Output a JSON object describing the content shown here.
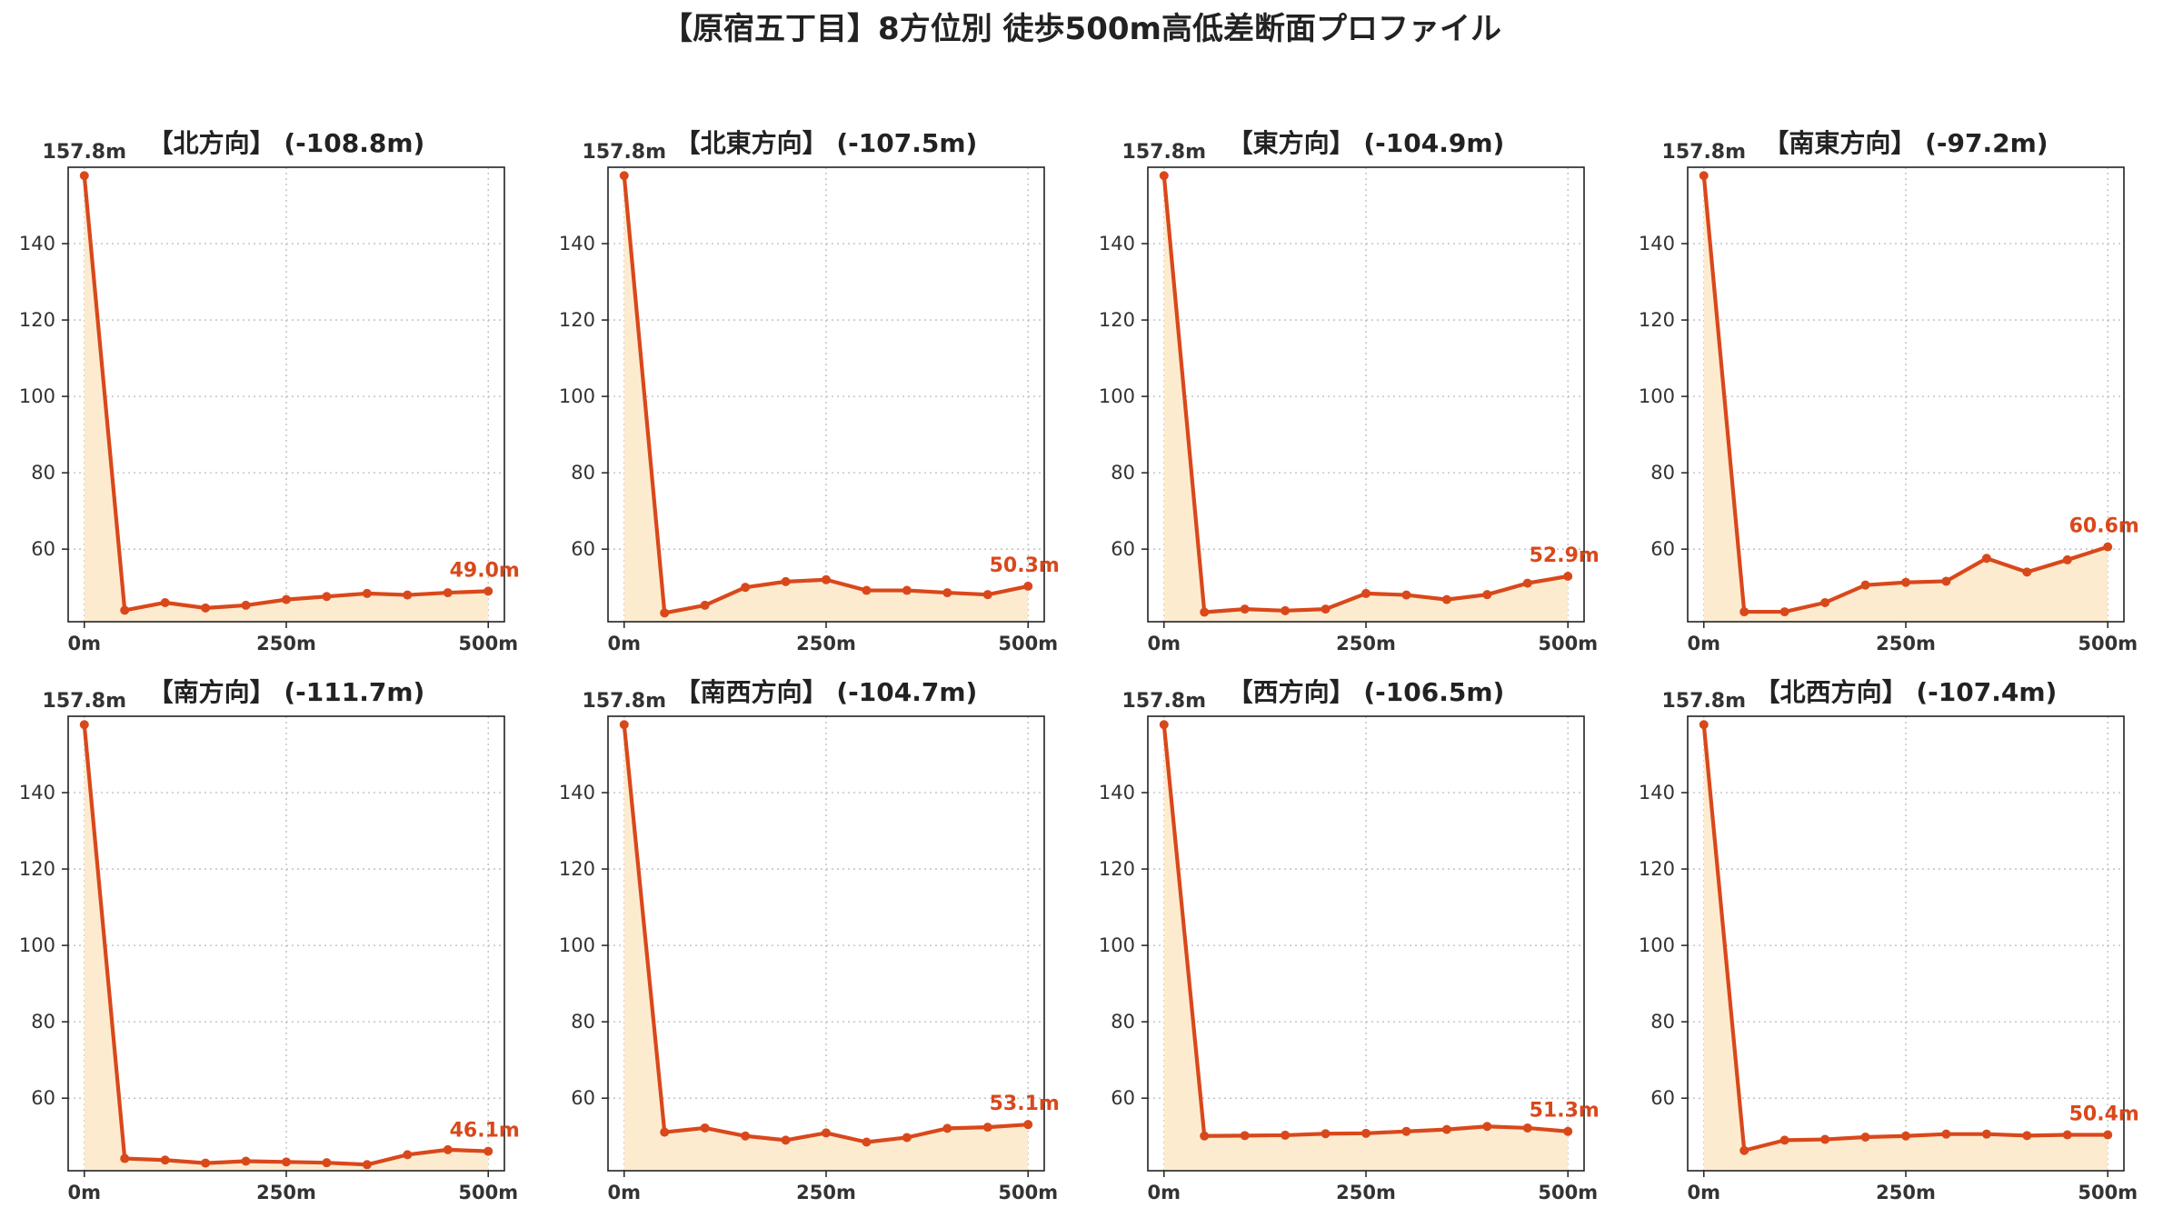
{
  "suptitle": "【原宿五丁目】8方位別 徒歩500m高低差断面プロファイル",
  "colors": {
    "line": "#d9481b",
    "fill": "#fdebd0",
    "grid": "#bbbbbb",
    "axis": "#222222",
    "text": "#222222",
    "tick_text": "#333333",
    "start_label_bg": "#ffffff"
  },
  "chart_data": [
    {
      "type": "line",
      "title": "【北方向】 (-108.8m)",
      "x": [
        0,
        50,
        100,
        150,
        200,
        250,
        300,
        350,
        400,
        450,
        500
      ],
      "y": [
        157.8,
        44.0,
        46.0,
        44.6,
        45.3,
        46.8,
        47.6,
        48.4,
        48.0,
        48.6,
        49.0
      ],
      "start_label": "157.8m",
      "end_label": "49.0m",
      "xticks": [
        0,
        250,
        500
      ],
      "xtick_labels": [
        "0m",
        "250m",
        "500m"
      ],
      "yticks": [
        60,
        80,
        100,
        120,
        140
      ],
      "xlim": [
        -20,
        520
      ],
      "ylim": [
        41,
        160
      ],
      "grid": true
    },
    {
      "type": "line",
      "title": "【北東方向】 (-107.5m)",
      "x": [
        0,
        50,
        100,
        150,
        200,
        250,
        300,
        350,
        400,
        450,
        500
      ],
      "y": [
        157.8,
        43.3,
        45.3,
        50.0,
        51.5,
        52.0,
        49.2,
        49.2,
        48.6,
        48.1,
        50.3
      ],
      "start_label": "157.8m",
      "end_label": "50.3m",
      "xticks": [
        0,
        250,
        500
      ],
      "xtick_labels": [
        "0m",
        "250m",
        "500m"
      ],
      "yticks": [
        60,
        80,
        100,
        120,
        140
      ],
      "xlim": [
        -20,
        520
      ],
      "ylim": [
        41,
        160
      ],
      "grid": true
    },
    {
      "type": "line",
      "title": "【東方向】 (-104.9m)",
      "x": [
        0,
        50,
        100,
        150,
        200,
        250,
        300,
        350,
        400,
        450,
        500
      ],
      "y": [
        157.8,
        43.5,
        44.3,
        43.9,
        44.3,
        48.4,
        48.0,
        46.8,
        48.1,
        51.1,
        52.9
      ],
      "start_label": "157.8m",
      "end_label": "52.9m",
      "xticks": [
        0,
        250,
        500
      ],
      "xtick_labels": [
        "0m",
        "250m",
        "500m"
      ],
      "yticks": [
        60,
        80,
        100,
        120,
        140
      ],
      "xlim": [
        -20,
        520
      ],
      "ylim": [
        41,
        160
      ],
      "grid": true
    },
    {
      "type": "line",
      "title": "【南東方向】 (-97.2m)",
      "x": [
        0,
        50,
        100,
        150,
        200,
        250,
        300,
        350,
        400,
        450,
        500
      ],
      "y": [
        157.8,
        43.6,
        43.6,
        46.0,
        50.6,
        51.3,
        51.6,
        57.6,
        54.0,
        57.2,
        60.6
      ],
      "start_label": "157.8m",
      "end_label": "60.6m",
      "xticks": [
        0,
        250,
        500
      ],
      "xtick_labels": [
        "0m",
        "250m",
        "500m"
      ],
      "yticks": [
        60,
        80,
        100,
        120,
        140
      ],
      "xlim": [
        -20,
        520
      ],
      "ylim": [
        41,
        160
      ],
      "grid": true
    },
    {
      "type": "line",
      "title": "【南方向】 (-111.7m)",
      "x": [
        0,
        50,
        100,
        150,
        200,
        250,
        300,
        350,
        400,
        450,
        500
      ],
      "y": [
        157.8,
        44.2,
        43.8,
        43.0,
        43.5,
        43.3,
        43.1,
        42.6,
        45.2,
        46.5,
        46.1
      ],
      "start_label": "157.8m",
      "end_label": "46.1m",
      "xticks": [
        0,
        250,
        500
      ],
      "xtick_labels": [
        "0m",
        "250m",
        "500m"
      ],
      "yticks": [
        60,
        80,
        100,
        120,
        140
      ],
      "xlim": [
        -20,
        520
      ],
      "ylim": [
        41,
        160
      ],
      "grid": true
    },
    {
      "type": "line",
      "title": "【南西方向】 (-104.7m)",
      "x": [
        0,
        50,
        100,
        150,
        200,
        250,
        300,
        350,
        400,
        450,
        500
      ],
      "y": [
        157.8,
        51.1,
        52.2,
        50.1,
        49.0,
        50.9,
        48.5,
        49.7,
        52.1,
        52.4,
        53.1
      ],
      "start_label": "157.8m",
      "end_label": "53.1m",
      "xticks": [
        0,
        250,
        500
      ],
      "xtick_labels": [
        "0m",
        "250m",
        "500m"
      ],
      "yticks": [
        60,
        80,
        100,
        120,
        140
      ],
      "xlim": [
        -20,
        520
      ],
      "ylim": [
        41,
        160
      ],
      "grid": true
    },
    {
      "type": "line",
      "title": "【西方向】 (-106.5m)",
      "x": [
        0,
        50,
        100,
        150,
        200,
        250,
        300,
        350,
        400,
        450,
        500
      ],
      "y": [
        157.8,
        50.1,
        50.2,
        50.3,
        50.7,
        50.8,
        51.3,
        51.8,
        52.6,
        52.2,
        51.3
      ],
      "start_label": "157.8m",
      "end_label": "51.3m",
      "xticks": [
        0,
        250,
        500
      ],
      "xtick_labels": [
        "0m",
        "250m",
        "500m"
      ],
      "yticks": [
        60,
        80,
        100,
        120,
        140
      ],
      "xlim": [
        -20,
        520
      ],
      "ylim": [
        41,
        160
      ],
      "grid": true
    },
    {
      "type": "line",
      "title": "【北西方向】 (-107.4m)",
      "x": [
        0,
        50,
        100,
        150,
        200,
        250,
        300,
        350,
        400,
        450,
        500
      ],
      "y": [
        157.8,
        46.3,
        49.0,
        49.2,
        49.8,
        50.1,
        50.6,
        50.6,
        50.2,
        50.4,
        50.4
      ],
      "start_label": "157.8m",
      "end_label": "50.4m",
      "xticks": [
        0,
        250,
        500
      ],
      "xtick_labels": [
        "0m",
        "250m",
        "500m"
      ],
      "yticks": [
        60,
        80,
        100,
        120,
        140
      ],
      "xlim": [
        -20,
        520
      ],
      "ylim": [
        41,
        160
      ],
      "grid": true
    }
  ]
}
